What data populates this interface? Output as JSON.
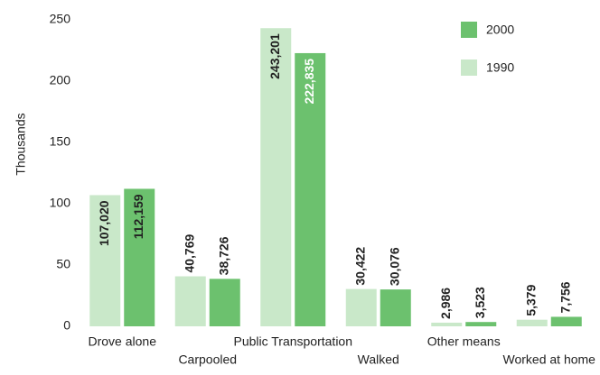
{
  "chart_data": {
    "type": "bar",
    "y_label": "Thousands",
    "categories": [
      "Drove alone",
      "Carpooled",
      "Public Transportation",
      "Walked",
      "Other means",
      "Worked at home"
    ],
    "series": [
      {
        "name": "1990",
        "color": "#c9e8c9",
        "values": [
          107.02,
          40.769,
          243.201,
          30.422,
          2.986,
          5.379
        ],
        "value_labels": [
          "107,020",
          "40,769",
          "243,201",
          "30,422",
          "2,986",
          "5,379"
        ]
      },
      {
        "name": "2000",
        "color": "#6cc16e",
        "values": [
          112.159,
          38.726,
          222.835,
          30.076,
          3.523,
          7.756
        ],
        "value_labels": [
          "112,159",
          "38,726",
          "222,835",
          "30,076",
          "3,523",
          "7,756"
        ]
      }
    ],
    "ylim": [
      0,
      250
    ],
    "yticks": [
      0,
      50,
      100,
      150,
      200,
      250
    ],
    "legend": "top-right",
    "grid": false
  }
}
